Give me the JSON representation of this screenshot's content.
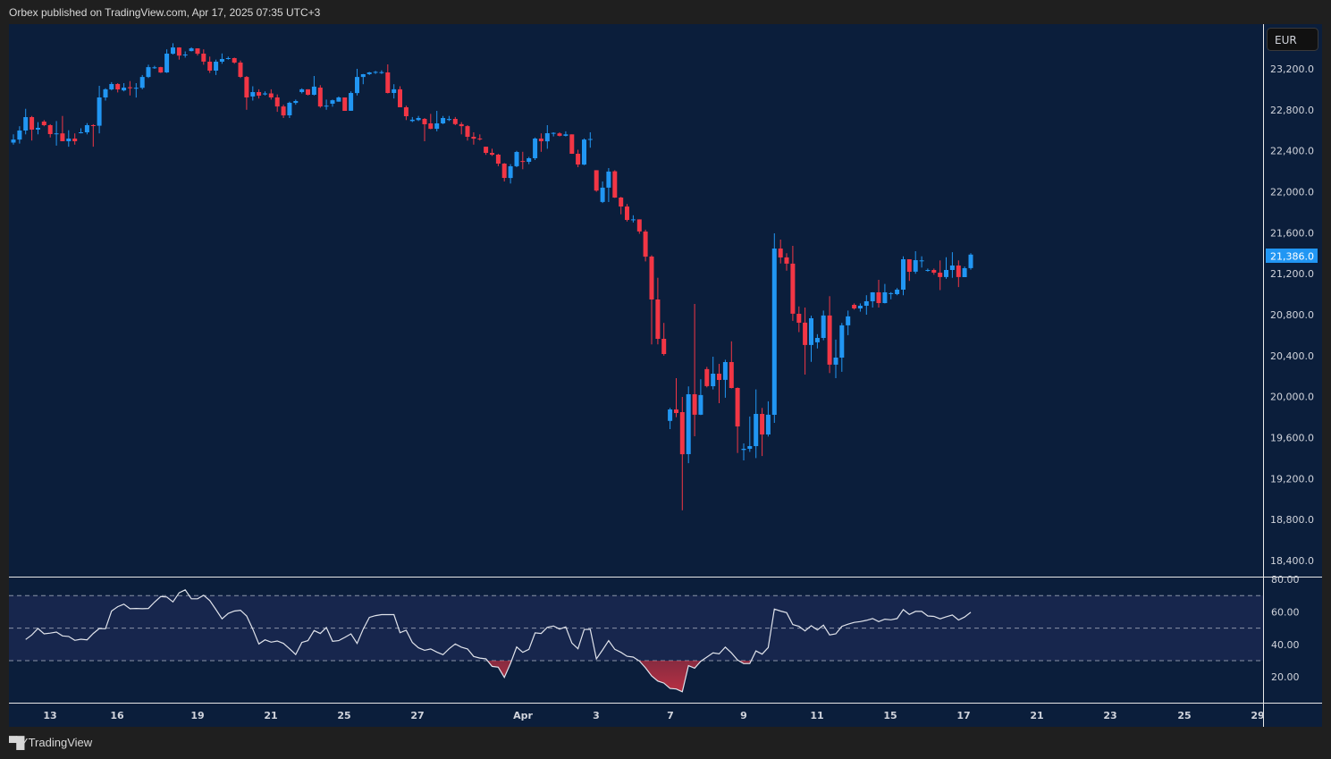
{
  "header": {
    "published": "Orbex published on TradingView.com, Apr 17, 2025 07:35 UTC+3"
  },
  "footer": {
    "brand": "TradingView",
    "logo_text": "TV"
  },
  "currency_button": "EUR",
  "colors": {
    "background": "#1f1f1f",
    "pane": "#0b1e3b",
    "up": "#2196f3",
    "down": "#f23645",
    "rsi_line": "#e0e3eb",
    "rsi_band": "#17264d",
    "last_price": "#2196f3"
  },
  "price_axis": {
    "labels": [
      "23,200.0",
      "22,800.0",
      "22,400.0",
      "22,000.0",
      "21,600.0",
      "21,200.0",
      "20,800.0",
      "20,400.0",
      "20,000.0",
      "19,600.0",
      "19,200.0",
      "18,800.0",
      "18,400.0"
    ],
    "last_price_label": "21,386.0"
  },
  "rsi_axis": {
    "labels": [
      "80.00",
      "60.00",
      "40.00",
      "20.00"
    ]
  },
  "time_axis": {
    "labels": [
      "13",
      "16",
      "19",
      "21",
      "25",
      "27",
      "Apr",
      "3",
      "7",
      "9",
      "11",
      "15",
      "17",
      "21",
      "23",
      "25",
      "29"
    ]
  },
  "chart_data": [
    {
      "type": "candlestick",
      "ylim": [
        18400,
        23400
      ],
      "last_price": 21386,
      "candles_ohlc": [
        [
          22480,
          22560,
          22460,
          22510
        ],
        [
          22510,
          22640,
          22470,
          22598
        ],
        [
          22598,
          22810,
          22560,
          22729
        ],
        [
          22729,
          22740,
          22500,
          22607
        ],
        [
          22607,
          22680,
          22560,
          22624
        ],
        [
          22685,
          22700,
          22640,
          22650
        ],
        [
          22650,
          22660,
          22530,
          22563
        ],
        [
          22563,
          22690,
          22450,
          22570
        ],
        [
          22570,
          22740,
          22520,
          22493
        ],
        [
          22493,
          22600,
          22440,
          22519
        ],
        [
          22519,
          22570,
          22460,
          22493
        ],
        [
          22575,
          22620,
          22570,
          22580
        ],
        [
          22580,
          22670,
          22560,
          22650
        ],
        [
          22650,
          22660,
          22440,
          22645
        ],
        [
          22645,
          23034,
          22570,
          22921
        ],
        [
          22921,
          23010,
          22890,
          23000
        ],
        [
          23000,
          23070,
          22990,
          23052
        ],
        [
          23052,
          23060,
          22970,
          23000
        ],
        [
          22990,
          23060,
          22980,
          23017
        ],
        [
          23020,
          23080,
          22940,
          23010
        ],
        [
          23010,
          23060,
          22920,
          23015
        ],
        [
          23015,
          23140,
          23000,
          23121
        ],
        [
          23121,
          23240,
          23110,
          23217
        ],
        [
          23212,
          23230,
          23200,
          23215
        ],
        [
          23217,
          23220,
          23160,
          23165
        ],
        [
          23165,
          23390,
          23160,
          23348
        ],
        [
          23348,
          23450,
          23340,
          23409
        ],
        [
          23409,
          23410,
          23290,
          23330
        ],
        [
          23335,
          23370,
          23310,
          23340
        ],
        [
          23374,
          23410,
          23370,
          23400
        ],
        [
          23400,
          23400,
          23330,
          23348
        ],
        [
          23348,
          23390,
          23240,
          23270
        ],
        [
          23270,
          23320,
          23160,
          23183
        ],
        [
          23183,
          23290,
          23140,
          23270
        ],
        [
          23270,
          23350,
          23250,
          23296
        ],
        [
          23300,
          23320,
          23290,
          23305
        ],
        [
          23305,
          23310,
          23250,
          23261
        ],
        [
          23261,
          23280,
          23110,
          23121
        ],
        [
          23121,
          23130,
          22800,
          22921
        ],
        [
          22930,
          23030,
          22890,
          22973
        ],
        [
          22973,
          23000,
          22910,
          22938
        ],
        [
          22950,
          22980,
          22940,
          22960
        ],
        [
          22960,
          23000,
          22900,
          22921
        ],
        [
          22921,
          22950,
          22780,
          22833
        ],
        [
          22833,
          22850,
          22720,
          22746
        ],
        [
          22746,
          22880,
          22720,
          22868
        ],
        [
          22868,
          22900,
          22850,
          22886
        ],
        [
          22973,
          23010,
          22960,
          23000
        ],
        [
          23000,
          23000,
          22940,
          22947
        ],
        [
          22947,
          23130,
          22940,
          23026
        ],
        [
          23017,
          23040,
          22820,
          22833
        ],
        [
          22835,
          22900,
          22800,
          22840
        ],
        [
          22860,
          22900,
          22830,
          22894
        ],
        [
          22880,
          22930,
          22880,
          22921
        ],
        [
          22921,
          22921,
          22790,
          22790
        ],
        [
          22790,
          22980,
          22790,
          22964
        ],
        [
          22964,
          23200,
          22940,
          23121
        ],
        [
          23121,
          23150,
          23050,
          23148
        ],
        [
          23148,
          23170,
          23140,
          23165
        ],
        [
          23165,
          23180,
          23150,
          23170
        ],
        [
          23165,
          23185,
          23150,
          23168
        ],
        [
          23165,
          23244,
          22960,
          22964
        ],
        [
          22964,
          23050,
          22910,
          23000
        ],
        [
          23000,
          23030,
          22825,
          22825
        ],
        [
          22825,
          22840,
          22700,
          22738
        ],
        [
          22690,
          22730,
          22680,
          22703
        ],
        [
          22700,
          22740,
          22690,
          22720
        ],
        [
          22711,
          22720,
          22493,
          22659
        ],
        [
          22668,
          22760,
          22610,
          22615
        ],
        [
          22615,
          22790,
          22590,
          22668
        ],
        [
          22668,
          22740,
          22660,
          22720
        ],
        [
          22700,
          22740,
          22690,
          22710
        ],
        [
          22711,
          22730,
          22650,
          22660
        ],
        [
          22660,
          22680,
          22560,
          22641
        ],
        [
          22641,
          22650,
          22500,
          22537
        ],
        [
          22537,
          22580,
          22460,
          22519
        ],
        [
          22520,
          22560,
          22500,
          22512
        ],
        [
          22440,
          22440,
          22360,
          22380
        ],
        [
          22380,
          22420,
          22350,
          22362
        ],
        [
          22362,
          22370,
          22250,
          22275
        ],
        [
          22275,
          22280,
          22100,
          22135
        ],
        [
          22135,
          22270,
          22080,
          22249
        ],
        [
          22249,
          22400,
          22240,
          22388
        ],
        [
          22300,
          22390,
          22220,
          22292
        ],
        [
          22292,
          22340,
          22270,
          22327
        ],
        [
          22327,
          22530,
          22310,
          22519
        ],
        [
          22519,
          22570,
          22390,
          22493
        ],
        [
          22493,
          22650,
          22420,
          22572
        ],
        [
          22570,
          22580,
          22540,
          22575
        ],
        [
          22570,
          22580,
          22540,
          22546
        ],
        [
          22546,
          22590,
          22540,
          22560
        ],
        [
          22560,
          22560,
          22370,
          22371
        ],
        [
          22371,
          22410,
          22240,
          22266
        ],
        [
          22266,
          22520,
          22260,
          22510
        ],
        [
          22510,
          22580,
          22430,
          22515
        ],
        [
          22210,
          22210,
          22000,
          22011
        ],
        [
          21900,
          22100,
          21890,
          22040
        ],
        [
          22040,
          22231,
          21900,
          22197
        ],
        [
          22200,
          22210,
          21940,
          21943
        ],
        [
          21943,
          21950,
          21780,
          21856
        ],
        [
          21856,
          21880,
          21710,
          21725
        ],
        [
          21725,
          21770,
          21700,
          21730
        ],
        [
          21730,
          21730,
          21590,
          21612
        ],
        [
          21612,
          21630,
          21320,
          21367
        ],
        [
          21367,
          21380,
          20510,
          20948
        ],
        [
          20948,
          21160,
          20510,
          20564
        ],
        [
          20564,
          20720,
          20400,
          20416
        ],
        [
          19763,
          19890,
          19683,
          19875
        ],
        [
          19875,
          20180,
          19800,
          19840
        ],
        [
          19849,
          19997,
          18890,
          19438
        ],
        [
          19438,
          20100,
          19350,
          20023
        ],
        [
          20023,
          20905,
          19613,
          19823
        ],
        [
          19823,
          20170,
          19820,
          20015
        ],
        [
          20268,
          20290,
          20090,
          20102
        ],
        [
          20102,
          20390,
          20070,
          20224
        ],
        [
          20224,
          20320,
          19936,
          20163
        ],
        [
          20163,
          20360,
          19989,
          20337
        ],
        [
          20337,
          20540,
          20080,
          20084
        ],
        [
          20084,
          20090,
          19450,
          19709
        ],
        [
          19480,
          19543,
          19377,
          19491
        ],
        [
          19491,
          19806,
          19460,
          19517
        ],
        [
          19517,
          20070,
          19400,
          19831
        ],
        [
          19831,
          19890,
          19420,
          19630
        ],
        [
          19630,
          19954,
          19610,
          19823
        ],
        [
          19823,
          21594,
          19744,
          21446
        ],
        [
          21446,
          21533,
          21300,
          21359
        ],
        [
          21359,
          21400,
          21230,
          21298
        ],
        [
          21298,
          21472,
          20740,
          20809
        ],
        [
          20809,
          20880,
          20630,
          20722
        ],
        [
          20722,
          20870,
          20215,
          20504
        ],
        [
          20504,
          20790,
          20340,
          20765
        ],
        [
          20530,
          20610,
          20470,
          20573
        ],
        [
          20573,
          20840,
          20550,
          20792
        ],
        [
          20792,
          20981,
          20230,
          20312
        ],
        [
          20312,
          20556,
          20180,
          20381
        ],
        [
          20381,
          20720,
          20242,
          20696
        ],
        [
          20696,
          20840,
          20600,
          20783
        ],
        [
          20896,
          20910,
          20850,
          20861
        ],
        [
          20861,
          20910,
          20830,
          20887
        ],
        [
          20887,
          20990,
          20800,
          20931
        ],
        [
          20931,
          21020,
          20870,
          21018
        ],
        [
          21018,
          21140,
          20870,
          20913
        ],
        [
          20913,
          21100,
          20910,
          21018
        ],
        [
          21010,
          21020,
          20950,
          21010
        ],
        [
          21000,
          21060,
          20990,
          21044
        ],
        [
          21044,
          21370,
          20990,
          21341
        ],
        [
          21341,
          21340,
          21130,
          21219
        ],
        [
          21219,
          21420,
          21200,
          21332
        ],
        [
          21330,
          21370,
          21260,
          21330
        ],
        [
          21236,
          21250,
          21220,
          21236
        ],
        [
          21236,
          21250,
          21190,
          21210
        ],
        [
          21210,
          21330,
          21040,
          21167
        ],
        [
          21167,
          21360,
          21150,
          21236
        ],
        [
          21236,
          21410,
          21160,
          21280
        ],
        [
          21280,
          21330,
          21070,
          21167
        ],
        [
          21167,
          21270,
          21170,
          21254
        ],
        [
          21254,
          21400,
          21240,
          21386
        ]
      ]
    },
    {
      "type": "line",
      "ylim": [
        0,
        85
      ],
      "levels": {
        "upper": 70,
        "middle": 50,
        "lower": 30
      },
      "values": [
        43,
        45.8,
        49.8,
        46.5,
        46.9,
        47.6,
        45.2,
        44.9,
        42.5,
        43.2,
        42.8,
        46.7,
        49.8,
        49.6,
        60.5,
        63.2,
        64.7,
        61.9,
        62.1,
        61.9,
        62.1,
        66,
        69.4,
        69.1,
        66.1,
        71.7,
        73.5,
        68,
        68,
        70.2,
        66.9,
        61.4,
        55.7,
        59,
        60.5,
        61,
        57.5,
        49.4,
        40.3,
        42.8,
        41.4,
        42.1,
        40.6,
        37.3,
        33.8,
        41.2,
        42.3,
        48.5,
        46.7,
        50.4,
        41.9,
        42.3,
        44.3,
        46.5,
        40.6,
        49.4,
        56.6,
        57.7,
        58.3,
        58.3,
        58.3,
        47.2,
        48.7,
        41.2,
        37.9,
        36.4,
        37.2,
        35.3,
        33.7,
        37.3,
        40.3,
        38.3,
        37.2,
        32.6,
        31.6,
        31.1,
        26.5,
        26,
        19.7,
        28.3,
        38.4,
        35.1,
        37,
        47.1,
        46.7,
        50.5,
        51.3,
        49.4,
        50.7,
        40.8,
        37.3,
        49.1,
        49.3,
        31.1,
        36.6,
        42.3,
        37,
        35.1,
        32.7,
        32.2,
        29.8,
        25.6,
        20.6,
        17.5,
        16.2,
        12.9,
        12.6,
        10.9,
        26.9,
        25.4,
        29.6,
        32.2,
        34.8,
        34.2,
        38.3,
        34.8,
        30.4,
        28.2,
        28.3,
        36,
        34,
        38.1,
        61.7,
        60.5,
        59.5,
        52.2,
        51.1,
        48.3,
        51.5,
        48.9,
        51.8,
        45.8,
        46.5,
        51.1,
        52.4,
        53.5,
        54,
        54.8,
        55.9,
        54,
        55.5,
        55.1,
        55.9,
        61.4,
        58.4,
        60.3,
        60.3,
        57.5,
        57.2,
        55.7,
        57,
        58.1,
        55,
        56.8,
        59.7
      ]
    }
  ]
}
